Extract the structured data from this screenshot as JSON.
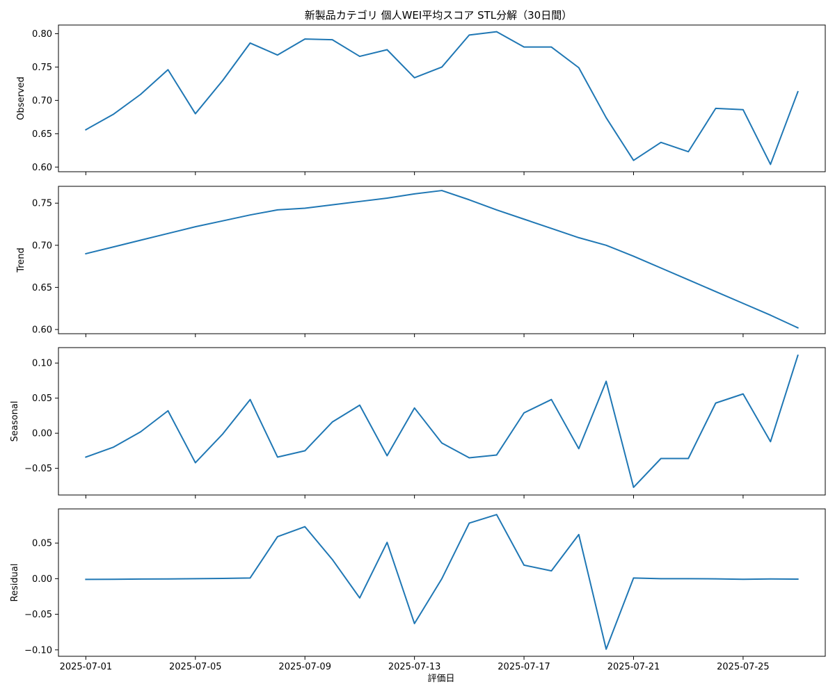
{
  "chart_data": {
    "type": "line",
    "title": "新製品カテゴリ 個人WEI平均スコア STL分解（30日間）",
    "xlabel": "評価日",
    "line_color": "#1f77b4",
    "grid": false,
    "x": [
      "2025-07-01",
      "2025-07-02",
      "2025-07-03",
      "2025-07-04",
      "2025-07-05",
      "2025-07-06",
      "2025-07-07",
      "2025-07-08",
      "2025-07-09",
      "2025-07-10",
      "2025-07-11",
      "2025-07-12",
      "2025-07-13",
      "2025-07-14",
      "2025-07-15",
      "2025-07-16",
      "2025-07-17",
      "2025-07-18",
      "2025-07-19",
      "2025-07-20",
      "2025-07-21",
      "2025-07-22",
      "2025-07-23",
      "2025-07-24",
      "2025-07-25",
      "2025-07-26",
      "2025-07-27"
    ],
    "xticks": [
      "2025-07-01",
      "2025-07-05",
      "2025-07-09",
      "2025-07-13",
      "2025-07-17",
      "2025-07-21",
      "2025-07-25"
    ],
    "xlim": [
      "2025-06-30",
      "2025-07-28"
    ],
    "panels": [
      {
        "name": "observed",
        "ylabel": "Observed",
        "ylim": [
          0.593,
          0.813
        ],
        "yticks": [
          "0.60",
          "0.65",
          "0.70",
          "0.75",
          "0.80"
        ],
        "values": [
          0.656,
          0.679,
          0.709,
          0.746,
          0.68,
          0.73,
          0.786,
          0.768,
          0.792,
          0.791,
          0.766,
          0.776,
          0.734,
          0.75,
          0.798,
          0.803,
          0.78,
          0.78,
          0.749,
          0.674,
          0.61,
          0.637,
          0.623,
          0.688,
          0.686,
          0.604,
          0.713
        ]
      },
      {
        "name": "trend",
        "ylabel": "Trend",
        "ylim": [
          0.595,
          0.77
        ],
        "yticks": [
          "0.60",
          "0.65",
          "0.70",
          "0.75"
        ],
        "values": [
          0.69,
          0.698,
          0.706,
          0.714,
          0.722,
          0.729,
          0.736,
          0.742,
          0.744,
          0.748,
          0.752,
          0.756,
          0.761,
          0.765,
          0.754,
          0.742,
          0.731,
          0.72,
          0.709,
          0.7,
          0.687,
          0.673,
          0.659,
          0.645,
          0.631,
          0.617,
          0.602
        ]
      },
      {
        "name": "seasonal",
        "ylabel": "Seasonal",
        "ylim": [
          -0.088,
          0.122
        ],
        "yticks": [
          "−0.05",
          "0.00",
          "0.05",
          "0.10"
        ],
        "values": [
          -0.034,
          -0.02,
          0.002,
          0.032,
          -0.042,
          -0.001,
          0.048,
          -0.034,
          -0.025,
          0.016,
          0.04,
          -0.032,
          0.036,
          -0.014,
          -0.035,
          -0.031,
          0.029,
          0.048,
          -0.022,
          0.074,
          -0.077,
          -0.036,
          -0.036,
          0.043,
          0.056,
          -0.012,
          0.111
        ]
      },
      {
        "name": "residual",
        "ylabel": "Residual",
        "ylim": [
          -0.109,
          0.098
        ],
        "yticks": [
          "−0.10",
          "−0.05",
          "0.00",
          "0.05"
        ],
        "values": [
          -0.001,
          -0.0008,
          -0.0005,
          -0.0004,
          0.0,
          0.0003,
          0.001,
          0.059,
          0.073,
          0.027,
          -0.027,
          0.051,
          -0.063,
          0.0,
          0.078,
          0.09,
          0.019,
          0.011,
          0.062,
          -0.099,
          0.001,
          0.0,
          0.0,
          -0.0002,
          -0.0008,
          -0.0004,
          -0.0006
        ]
      }
    ]
  }
}
